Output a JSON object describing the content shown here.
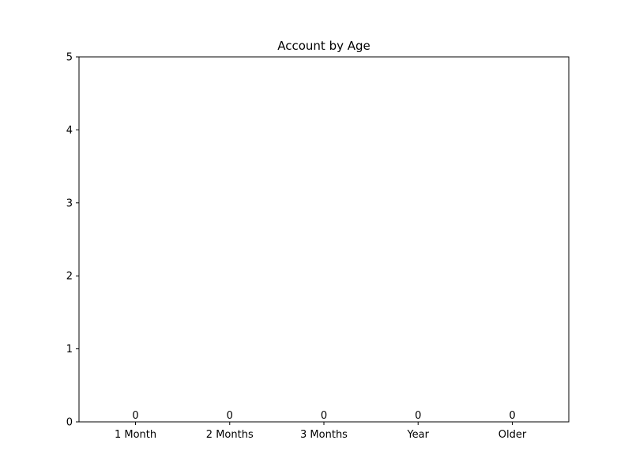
{
  "chart_data": {
    "type": "bar",
    "title": "Account by Age",
    "xlabel": "",
    "ylabel": "",
    "categories": [
      "1 Month",
      "2 Months",
      "3 Months",
      "Year",
      "Older"
    ],
    "values": [
      0,
      0,
      0,
      0,
      0
    ],
    "data_labels": [
      "0",
      "0",
      "0",
      "0",
      "0"
    ],
    "ylim": [
      0,
      5
    ],
    "yticks": [
      0,
      1,
      2,
      3,
      4,
      5
    ],
    "grid": false,
    "legend": "none",
    "bar_color": "#1f77b4"
  }
}
